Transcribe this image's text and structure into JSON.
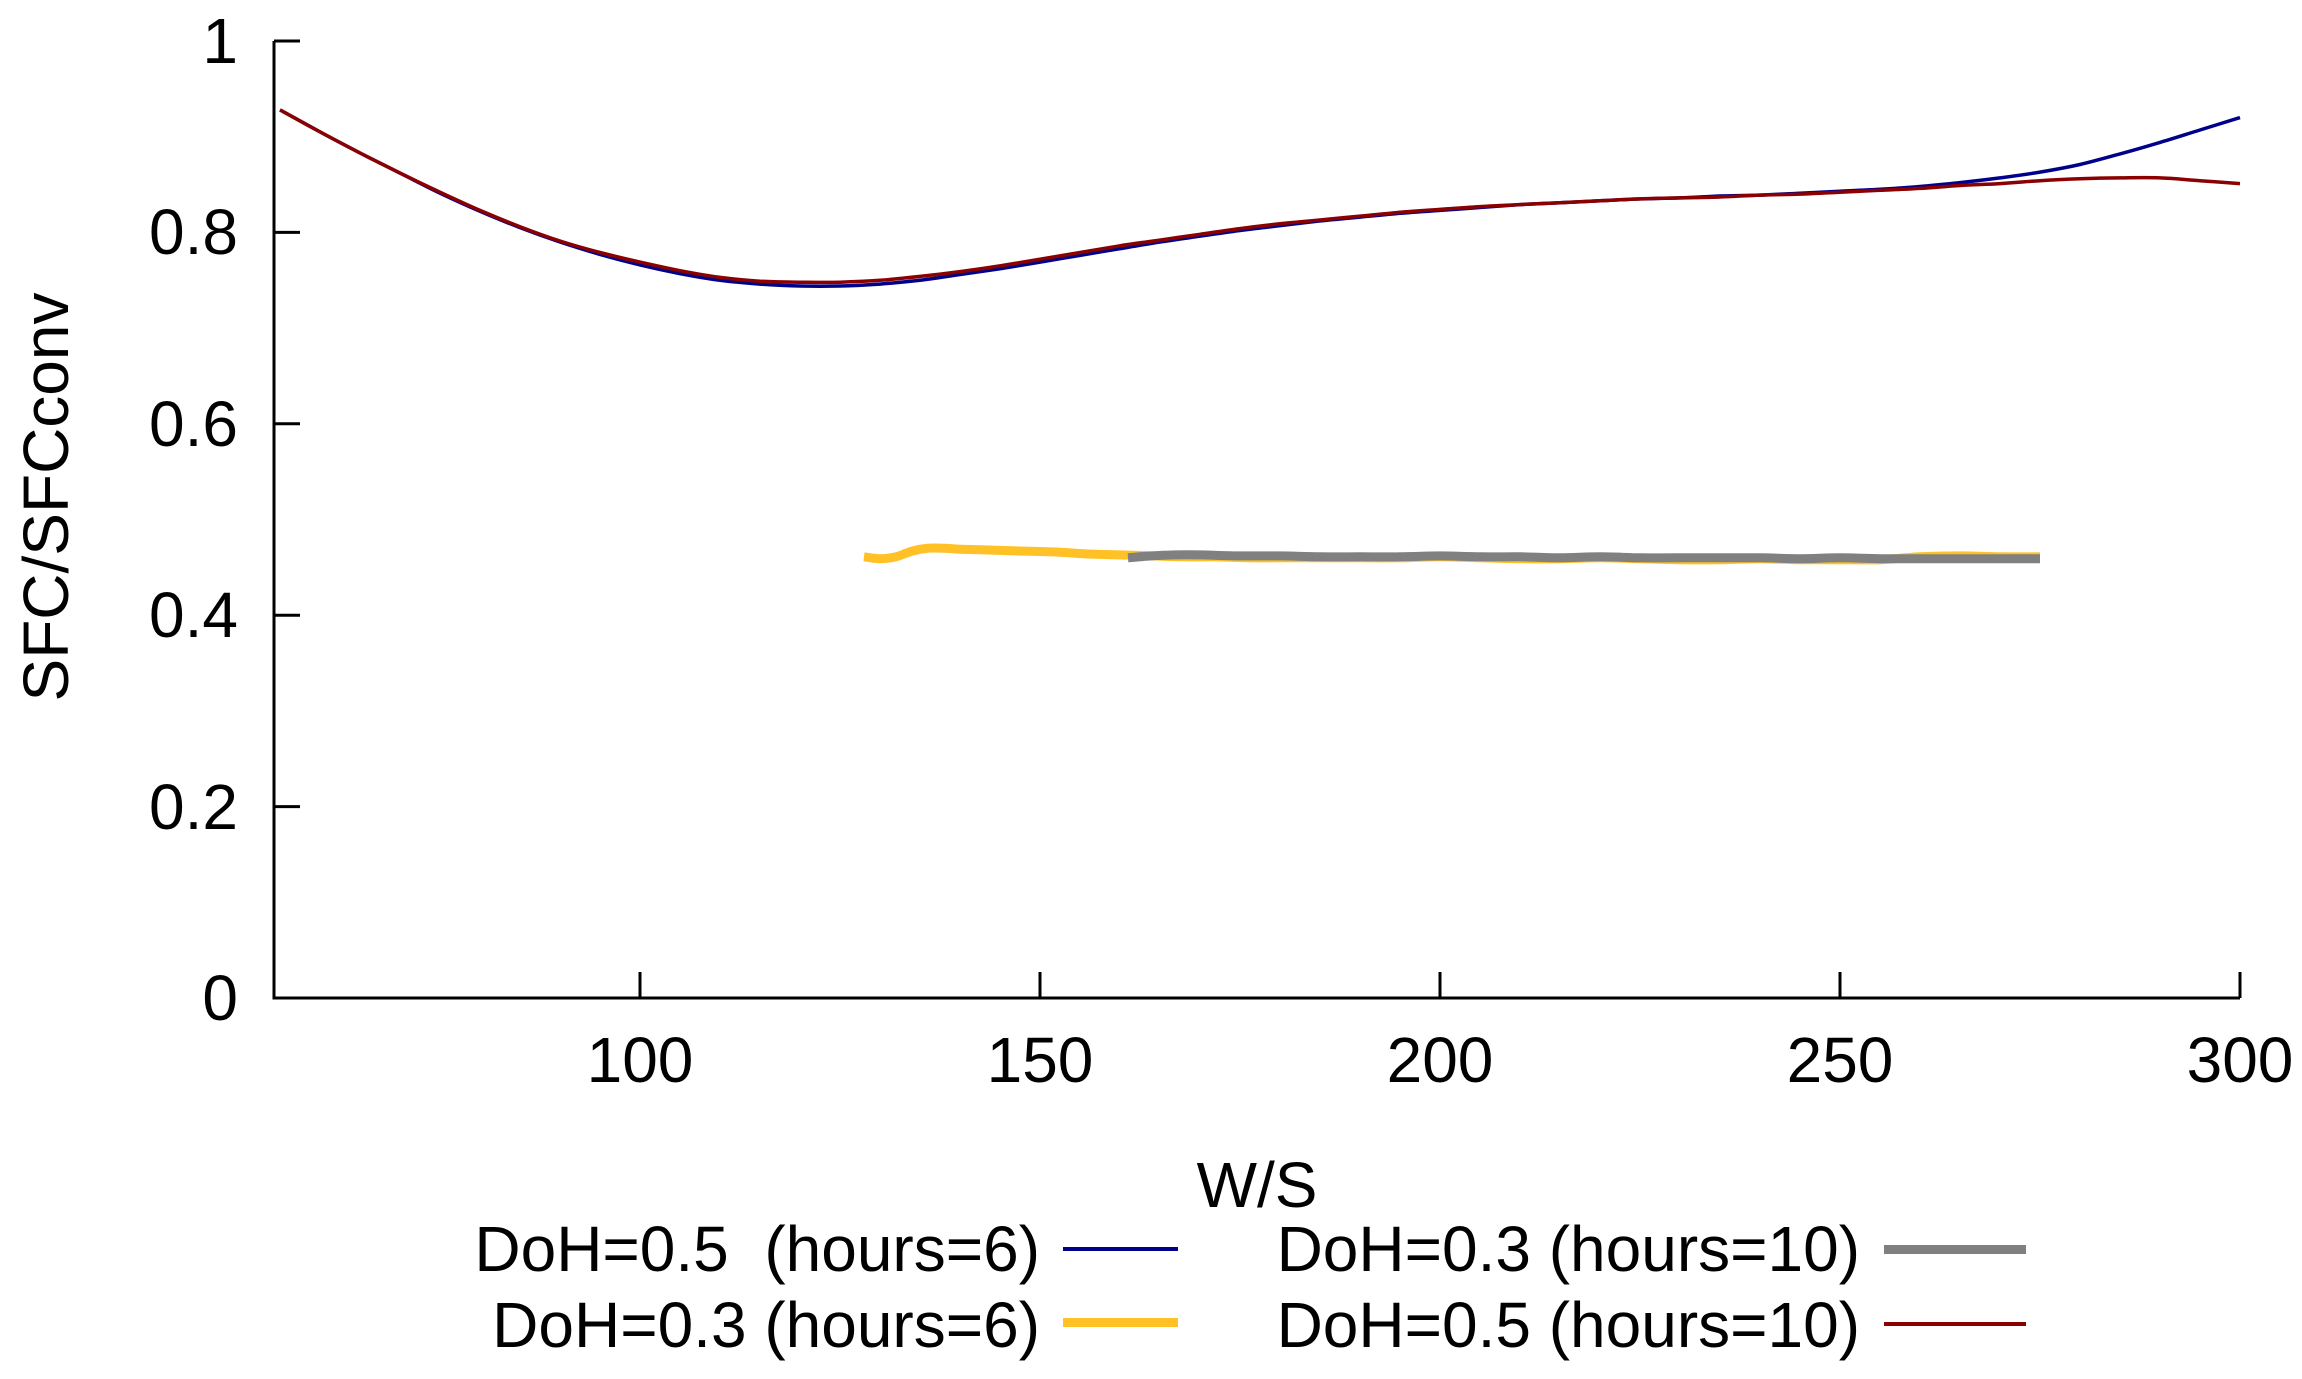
{
  "chart_data": {
    "type": "line",
    "title": "",
    "xlabel": "W/S",
    "ylabel": "SFC/SFCconv",
    "xlim": [
      54.25,
      300
    ],
    "ylim": [
      0,
      1
    ],
    "grid": false,
    "legend_position": "below-plot, two columns",
    "xticks": [
      [
        100,
        "100"
      ],
      [
        150,
        "150"
      ],
      [
        200,
        "200"
      ],
      [
        250,
        "250"
      ],
      [
        300,
        "300"
      ]
    ],
    "yticks": [
      [
        0,
        "0"
      ],
      [
        0.2,
        "0.2"
      ],
      [
        0.4,
        "0.4"
      ],
      [
        0.6,
        "0.6"
      ],
      [
        0.8,
        "0.8"
      ],
      [
        1,
        "1"
      ]
    ],
    "axis_color": "#000000",
    "series": [
      {
        "label": "DoH=0.5  (hours=6)",
        "color": "#00008B",
        "width": 3.5,
        "x": [
          55,
          60,
          65,
          70,
          75,
          80,
          85,
          90,
          95,
          100,
          105,
          110,
          115,
          120,
          125,
          130,
          135,
          140,
          145,
          150,
          155,
          160,
          165,
          170,
          175,
          180,
          185,
          190,
          195,
          200,
          205,
          210,
          215,
          220,
          225,
          230,
          235,
          240,
          245,
          250,
          255,
          260,
          265,
          270,
          275,
          280,
          285,
          290,
          295,
          300
        ],
        "y": [
          0.928,
          0.905,
          0.883,
          0.862,
          0.841,
          0.822,
          0.805,
          0.79,
          0.777,
          0.766,
          0.757,
          0.75,
          0.746,
          0.744,
          0.744,
          0.746,
          0.75,
          0.756,
          0.762,
          0.769,
          0.776,
          0.783,
          0.79,
          0.796,
          0.802,
          0.807,
          0.812,
          0.816,
          0.82,
          0.823,
          0.826,
          0.829,
          0.831,
          0.833,
          0.835,
          0.836,
          0.838,
          0.839,
          0.841,
          0.843,
          0.845,
          0.848,
          0.852,
          0.857,
          0.863,
          0.871,
          0.882,
          0.894,
          0.907,
          0.92
        ]
      },
      {
        "label": "DoH=0.3 (hours=10)",
        "color": "#808080",
        "width": 9,
        "x": [
          161,
          164,
          167,
          170,
          175,
          180,
          185,
          190,
          195,
          200,
          205,
          210,
          215,
          220,
          225,
          230,
          235,
          240,
          245,
          250,
          255,
          260,
          265,
          270,
          275
        ],
        "y": [
          0.46,
          0.462,
          0.463,
          0.463,
          0.462,
          0.462,
          0.461,
          0.461,
          0.461,
          0.462,
          0.461,
          0.461,
          0.46,
          0.461,
          0.46,
          0.46,
          0.46,
          0.46,
          0.459,
          0.46,
          0.459,
          0.459,
          0.459,
          0.459,
          0.459
        ]
      },
      {
        "label": "DoH=0.3 (hours=6)",
        "color": "#FFC125",
        "width": 9,
        "x": [
          128,
          130,
          132,
          134,
          136,
          138,
          140,
          144,
          148,
          152,
          156,
          160,
          164,
          168,
          172,
          176,
          180,
          185,
          190,
          195,
          200,
          205,
          210,
          215,
          220,
          225,
          230,
          235,
          240,
          245,
          250,
          255,
          260,
          265,
          270,
          275
        ],
        "y": [
          0.461,
          0.459,
          0.461,
          0.467,
          0.47,
          0.47,
          0.469,
          0.468,
          0.467,
          0.466,
          0.464,
          0.463,
          0.462,
          0.461,
          0.461,
          0.46,
          0.46,
          0.46,
          0.46,
          0.46,
          0.461,
          0.46,
          0.459,
          0.459,
          0.46,
          0.459,
          0.458,
          0.458,
          0.459,
          0.458,
          0.458,
          0.458,
          0.461,
          0.462,
          0.461,
          0.461
        ]
      },
      {
        "label": "DoH=0.5 (hours=10)",
        "color": "#8B0000",
        "width": 3.5,
        "x": [
          55,
          60,
          65,
          70,
          75,
          80,
          85,
          90,
          95,
          100,
          105,
          110,
          115,
          120,
          125,
          130,
          135,
          140,
          145,
          150,
          155,
          160,
          165,
          170,
          175,
          180,
          185,
          190,
          195,
          200,
          205,
          210,
          215,
          220,
          225,
          230,
          235,
          240,
          245,
          250,
          255,
          260,
          265,
          270,
          275,
          280,
          285,
          290,
          295,
          300
        ],
        "y": [
          0.928,
          0.905,
          0.883,
          0.862,
          0.842,
          0.823,
          0.806,
          0.791,
          0.779,
          0.769,
          0.76,
          0.753,
          0.749,
          0.748,
          0.748,
          0.75,
          0.754,
          0.759,
          0.765,
          0.772,
          0.779,
          0.786,
          0.792,
          0.798,
          0.804,
          0.809,
          0.813,
          0.817,
          0.821,
          0.824,
          0.827,
          0.829,
          0.831,
          0.833,
          0.835,
          0.836,
          0.837,
          0.839,
          0.84,
          0.842,
          0.844,
          0.846,
          0.849,
          0.851,
          0.854,
          0.856,
          0.857,
          0.857,
          0.854,
          0.851
        ]
      }
    ]
  }
}
